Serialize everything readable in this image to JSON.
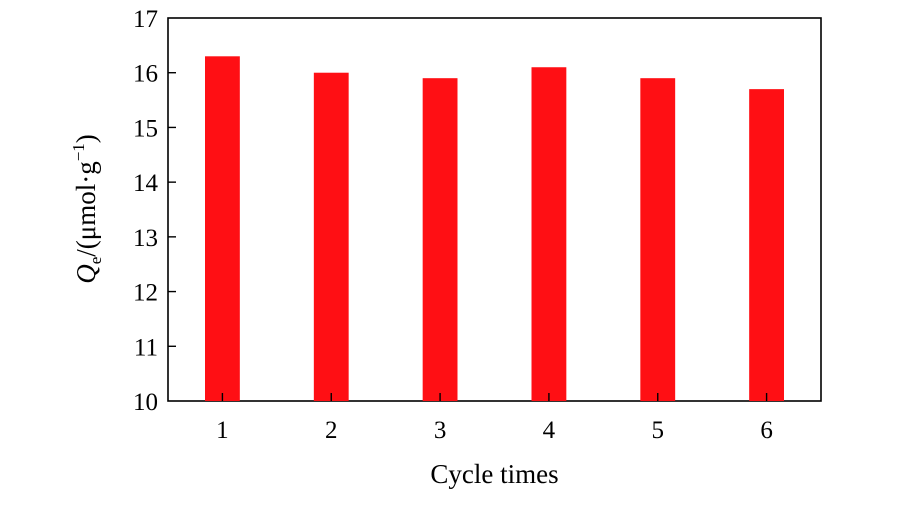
{
  "chart_data": {
    "type": "bar",
    "categories": [
      "1",
      "2",
      "3",
      "4",
      "5",
      "6"
    ],
    "values": [
      16.3,
      16.0,
      15.9,
      16.1,
      15.9,
      15.7
    ],
    "title": "",
    "xlabel": "Cycle times",
    "ylabel": {
      "symbol": "Q",
      "subscript": "e",
      "unit": "/(μmol·g",
      "exponent": "−1",
      "close": ")"
    },
    "ylim": [
      10,
      17
    ],
    "yticks": [
      "10",
      "11",
      "12",
      "13",
      "14",
      "15",
      "16",
      "17"
    ],
    "grid": false,
    "legend": "none",
    "bar_color": "#ff0f14"
  }
}
